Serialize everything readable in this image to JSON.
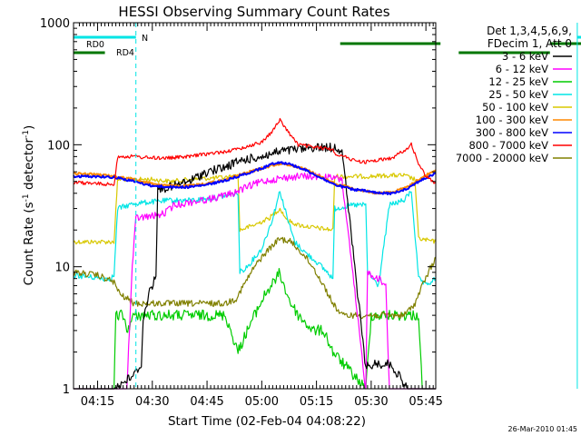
{
  "chart_data": {
    "type": "line",
    "title": "HESSI Observing Summary Count Rates",
    "xlabel": "Start Time (02-Feb-04 04:08:22)",
    "ylabel_main": "Count Rate (s",
    "ylabel_sup1": "-1",
    "ylabel_mid": " detector",
    "ylabel_sup2": "-1",
    "ylabel_end": ")",
    "ylog": true,
    "ylim": [
      1,
      1000
    ],
    "xlim_minutes": [
      8.4,
      47.7
    ],
    "x_tick_minutes": [
      15,
      30,
      45,
      60,
      75,
      90,
      105
    ],
    "x_tick_labels": [
      "04:15",
      "04:30",
      "04:45",
      "05:00",
      "05:15",
      "05:30",
      "05:45"
    ],
    "y_tick_values": [
      1,
      10,
      100,
      1000
    ],
    "y_tick_labels": [
      "1",
      "10",
      "100",
      "1000"
    ],
    "legend_header": [
      "Det 1,3,4,5,6,9,",
      "FDecim 1, Att 0"
    ],
    "series": [
      {
        "name": "3 - 6 keV",
        "color": "#000000",
        "points": [
          [
            8.4,
            1
          ],
          [
            19.5,
            1
          ],
          [
            25,
            1.3
          ],
          [
            27,
            1.6
          ],
          [
            27.5,
            3.6
          ],
          [
            29,
            6
          ],
          [
            30,
            7
          ],
          [
            31,
            9
          ],
          [
            31.5,
            43
          ],
          [
            35,
            45
          ],
          [
            40,
            50
          ],
          [
            45,
            60
          ],
          [
            50,
            65
          ],
          [
            52,
            70
          ],
          [
            55,
            75
          ],
          [
            60,
            80
          ],
          [
            65,
            88
          ],
          [
            70,
            92
          ],
          [
            74,
            95
          ],
          [
            80,
            95
          ],
          [
            82,
            90
          ],
          [
            88.5,
            1.5
          ],
          [
            91,
            1.6
          ],
          [
            95,
            1.6
          ],
          [
            96,
            1.5
          ],
          [
            100,
            1
          ],
          [
            107.7,
            1
          ]
        ]
      },
      {
        "name": "6 - 12 keV",
        "color": "#ff00ff",
        "points": [
          [
            8.4,
            1
          ],
          [
            20,
            1
          ],
          [
            23,
            1
          ],
          [
            24.5,
            10
          ],
          [
            25.5,
            25
          ],
          [
            30,
            26
          ],
          [
            33,
            27
          ],
          [
            36,
            32
          ],
          [
            41,
            34
          ],
          [
            46,
            36
          ],
          [
            52,
            40
          ],
          [
            56,
            45
          ],
          [
            60,
            50
          ],
          [
            65,
            53
          ],
          [
            70,
            55
          ],
          [
            75,
            55
          ],
          [
            80,
            53
          ],
          [
            82,
            52
          ],
          [
            88.5,
            1
          ],
          [
            89,
            9
          ],
          [
            92,
            8
          ],
          [
            94,
            7
          ],
          [
            95,
            1
          ],
          [
            107.7,
            1
          ]
        ]
      },
      {
        "name": "12 - 25 keV",
        "color": "#00cc00",
        "points": [
          [
            8.4,
            1
          ],
          [
            19.5,
            1
          ],
          [
            20,
            4
          ],
          [
            22,
            4
          ],
          [
            23,
            3
          ],
          [
            25,
            4
          ],
          [
            30,
            4
          ],
          [
            35,
            4
          ],
          [
            40,
            4
          ],
          [
            45,
            4
          ],
          [
            50,
            4
          ],
          [
            53.5,
            2
          ],
          [
            56,
            3
          ],
          [
            58,
            4
          ],
          [
            61,
            6
          ],
          [
            64,
            8
          ],
          [
            65,
            9
          ],
          [
            66,
            7
          ],
          [
            68,
            5
          ],
          [
            70,
            4
          ],
          [
            74,
            3
          ],
          [
            77,
            3
          ],
          [
            79.5,
            2
          ],
          [
            88.5,
            1
          ],
          [
            90,
            4
          ],
          [
            100,
            4
          ],
          [
            103,
            4
          ],
          [
            104,
            1
          ],
          [
            107.7,
            1
          ]
        ]
      },
      {
        "name": "25 - 50 keV",
        "color": "#00e5e5",
        "points": [
          [
            8.4,
            8.5
          ],
          [
            17,
            8
          ],
          [
            18.5,
            8
          ],
          [
            19.5,
            8.5
          ],
          [
            20.5,
            30
          ],
          [
            25,
            33
          ],
          [
            30,
            34
          ],
          [
            35,
            35
          ],
          [
            40,
            35
          ],
          [
            45,
            36
          ],
          [
            50,
            38
          ],
          [
            53.5,
            40
          ],
          [
            54,
            9
          ],
          [
            56,
            10
          ],
          [
            60,
            14
          ],
          [
            63,
            25
          ],
          [
            65,
            42
          ],
          [
            67,
            25
          ],
          [
            69,
            16
          ],
          [
            72,
            13
          ],
          [
            75,
            11
          ],
          [
            78,
            9
          ],
          [
            79.5,
            8
          ],
          [
            80,
            30
          ],
          [
            85,
            32
          ],
          [
            88.5,
            32
          ],
          [
            89,
            9
          ],
          [
            92,
            7
          ],
          [
            95,
            32
          ],
          [
            99,
            35
          ],
          [
            101,
            42
          ],
          [
            103,
            8
          ],
          [
            105,
            7
          ],
          [
            107.7,
            8
          ]
        ]
      },
      {
        "name": "50 - 100 keV",
        "color": "#d8c800",
        "points": [
          [
            8.4,
            16
          ],
          [
            15,
            16
          ],
          [
            19.5,
            16
          ],
          [
            20.5,
            52
          ],
          [
            30,
            52
          ],
          [
            35,
            50
          ],
          [
            40,
            52
          ],
          [
            45,
            53
          ],
          [
            50,
            54
          ],
          [
            53.5,
            56
          ],
          [
            54,
            20
          ],
          [
            58,
            22
          ],
          [
            62,
            25
          ],
          [
            65,
            30
          ],
          [
            67,
            24
          ],
          [
            70,
            22
          ],
          [
            74,
            21
          ],
          [
            79.5,
            20
          ],
          [
            80,
            55
          ],
          [
            85,
            55
          ],
          [
            88.5,
            55
          ],
          [
            89,
            55
          ],
          [
            95,
            56
          ],
          [
            99,
            56
          ],
          [
            102,
            52
          ],
          [
            103,
            17
          ],
          [
            107.7,
            16
          ]
        ]
      },
      {
        "name": "100 - 300 keV",
        "color": "#ff8800",
        "points": [
          [
            8.4,
            58
          ],
          [
            15,
            57
          ],
          [
            20,
            55
          ],
          [
            25,
            52
          ],
          [
            30,
            48
          ],
          [
            35,
            46
          ],
          [
            40,
            46
          ],
          [
            45,
            48
          ],
          [
            50,
            52
          ],
          [
            55,
            58
          ],
          [
            60,
            64
          ],
          [
            63,
            68
          ],
          [
            65,
            70
          ],
          [
            68,
            68
          ],
          [
            72,
            63
          ],
          [
            76,
            55
          ],
          [
            80,
            48
          ],
          [
            85,
            44
          ],
          [
            88,
            42
          ],
          [
            92,
            40
          ],
          [
            96,
            41
          ],
          [
            100,
            45
          ],
          [
            103,
            52
          ],
          [
            107.7,
            62
          ]
        ]
      },
      {
        "name": "300 - 800 keV",
        "color": "#0000ff",
        "points": [
          [
            8.4,
            55
          ],
          [
            15,
            55
          ],
          [
            20,
            54
          ],
          [
            25,
            50
          ],
          [
            30,
            46
          ],
          [
            35,
            45
          ],
          [
            40,
            45
          ],
          [
            45,
            47
          ],
          [
            50,
            51
          ],
          [
            55,
            57
          ],
          [
            60,
            64
          ],
          [
            63,
            70
          ],
          [
            65,
            72
          ],
          [
            68,
            69
          ],
          [
            72,
            62
          ],
          [
            76,
            54
          ],
          [
            80,
            47
          ],
          [
            85,
            43
          ],
          [
            88,
            42
          ],
          [
            92,
            40
          ],
          [
            96,
            40
          ],
          [
            100,
            44
          ],
          [
            103,
            50
          ],
          [
            107.7,
            58
          ]
        ]
      },
      {
        "name": "800 - 7000 keV",
        "color": "#ff0000",
        "points": [
          [
            8.4,
            49
          ],
          [
            15,
            48
          ],
          [
            19.5,
            47
          ],
          [
            20.5,
            80
          ],
          [
            25,
            80
          ],
          [
            30,
            78
          ],
          [
            35,
            78
          ],
          [
            40,
            80
          ],
          [
            45,
            84
          ],
          [
            50,
            88
          ],
          [
            53.5,
            92
          ],
          [
            55,
            95
          ],
          [
            60,
            105
          ],
          [
            63,
            130
          ],
          [
            65,
            160
          ],
          [
            67,
            130
          ],
          [
            70,
            100
          ],
          [
            75,
            95
          ],
          [
            79.5,
            92
          ],
          [
            80,
            85
          ],
          [
            85,
            75
          ],
          [
            88,
            72
          ],
          [
            92,
            75
          ],
          [
            96,
            78
          ],
          [
            99,
            90
          ],
          [
            101,
            100
          ],
          [
            103,
            70
          ],
          [
            105,
            55
          ],
          [
            107.7,
            48
          ]
        ]
      },
      {
        "name": "7000 - 20000 keV",
        "color": "#808000",
        "points": [
          [
            8.4,
            9
          ],
          [
            15,
            8.5
          ],
          [
            19.5,
            7.5
          ],
          [
            21,
            6
          ],
          [
            25,
            5
          ],
          [
            30,
            5
          ],
          [
            35,
            5
          ],
          [
            40,
            5
          ],
          [
            45,
            5
          ],
          [
            50,
            5
          ],
          [
            53,
            5.5
          ],
          [
            55,
            7
          ],
          [
            58,
            10
          ],
          [
            61,
            13
          ],
          [
            63,
            15
          ],
          [
            65,
            17
          ],
          [
            68,
            16
          ],
          [
            71,
            13
          ],
          [
            74,
            10
          ],
          [
            77,
            7
          ],
          [
            79.5,
            5
          ],
          [
            82,
            4
          ],
          [
            85,
            4
          ],
          [
            88,
            4
          ],
          [
            91,
            4
          ],
          [
            95,
            4
          ],
          [
            99,
            4
          ],
          [
            102,
            5
          ],
          [
            104,
            7
          ],
          [
            107.7,
            12
          ]
        ]
      }
    ],
    "mode_markers": {
      "flag_row1_label": "RD0",
      "flag_row2_label": "RD4",
      "night_label": "N",
      "flag_row1_segments_minutes": [
        [
          21.5,
          49
        ],
        [
          79,
          101
        ],
        [
          104.5,
          107.7
        ]
      ],
      "flag_row2_segments_minutes": [
        [
          8.4,
          17
        ],
        [
          54,
          79
        ],
        [
          104.5,
          107.7
        ]
      ],
      "night_segments_minutes": [
        [
          8.4,
          25.5
        ],
        [
          86.5,
          107.7
        ]
      ],
      "solid_verticals_minutes": [
        8.4,
        86.5
      ],
      "dashed_verticals_minutes": [
        25.5,
        107.2
      ]
    },
    "timestamp": "26-Mar-2010 01:45",
    "grid": false,
    "legend_position": "right"
  }
}
